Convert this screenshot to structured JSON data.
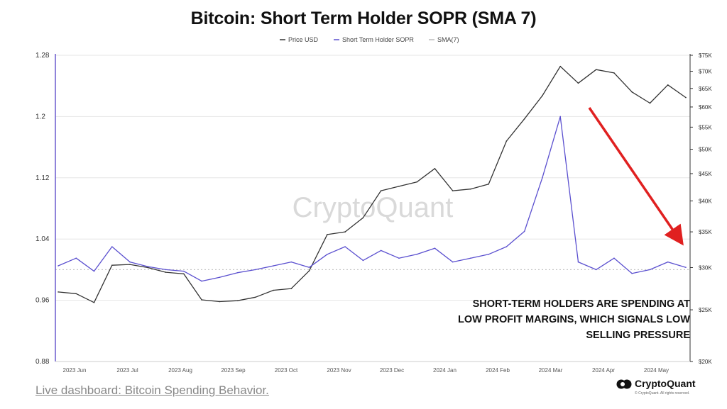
{
  "chart_data": {
    "type": "line",
    "title": "Bitcoin: Short Term Holder SOPR (SMA 7)",
    "legend": [
      "Price USD",
      "Short Term Holder SOPR",
      "SMA(7)"
    ],
    "legend_placement": "top-center",
    "y_left": {
      "ticks": [
        "1.28",
        "1.2",
        "1.12",
        "1.04",
        "0.96",
        "0.88"
      ],
      "range": [
        0.88,
        1.28
      ]
    },
    "y_right": {
      "ticks": [
        "$75K",
        "$70K",
        "$65K",
        "$60K",
        "$55K",
        "$50K",
        "$45K",
        "$40K",
        "$35K",
        "$30K",
        "$25K",
        "$20K"
      ],
      "range": [
        20000,
        75000
      ],
      "scale": "log"
    },
    "x_ticks": [
      "2023 Jun",
      "2023 Jul",
      "2023 Aug",
      "2023 Sep",
      "2023 Oct",
      "2023 Nov",
      "2023 Dec",
      "2024 Jan",
      "2024 Feb",
      "2024 Mar",
      "2024 Apr",
      "2024 May"
    ],
    "grid": true,
    "reference_line": {
      "value": 1.0,
      "style": "dotted"
    },
    "series": [
      {
        "name": "Price USD",
        "color": "#333333",
        "axis": "right",
        "x": [
          "2023 Jun",
          "2023 Jun",
          "2023 Jun",
          "2023 Jul",
          "2023 Jul",
          "2023 Jul",
          "2023 Aug",
          "2023 Aug",
          "2023 Aug",
          "2023 Sep",
          "2023 Sep",
          "2023 Sep",
          "2023 Oct",
          "2023 Oct",
          "2023 Oct",
          "2023 Nov",
          "2023 Nov",
          "2023 Nov",
          "2023 Dec",
          "2023 Dec",
          "2023 Dec",
          "2024 Jan",
          "2024 Jan",
          "2024 Jan",
          "2024 Feb",
          "2024 Feb",
          "2024 Feb",
          "2024 Mar",
          "2024 Mar",
          "2024 Mar",
          "2024 Apr",
          "2024 Apr",
          "2024 Apr",
          "2024 May",
          "2024 May",
          "2024 May"
        ],
        "values": [
          27000,
          26800,
          25800,
          30300,
          30400,
          30000,
          29400,
          29200,
          26100,
          25900,
          26000,
          26400,
          27200,
          27400,
          29600,
          34600,
          35000,
          37200,
          41800,
          42600,
          43400,
          46000,
          41800,
          42100,
          43000,
          51800,
          57000,
          63000,
          71500,
          66500,
          70500,
          69500,
          64000,
          61000,
          66000,
          62500
        ]
      },
      {
        "name": "Short Term Holder SOPR",
        "color": "#5a4fcf",
        "axis": "left",
        "x": [
          "2023 Jun",
          "2023 Jun",
          "2023 Jun",
          "2023 Jul",
          "2023 Jul",
          "2023 Jul",
          "2023 Aug",
          "2023 Aug",
          "2023 Aug",
          "2023 Sep",
          "2023 Sep",
          "2023 Sep",
          "2023 Oct",
          "2023 Oct",
          "2023 Oct",
          "2023 Nov",
          "2023 Nov",
          "2023 Nov",
          "2023 Dec",
          "2023 Dec",
          "2023 Dec",
          "2024 Jan",
          "2024 Jan",
          "2024 Jan",
          "2024 Feb",
          "2024 Feb",
          "2024 Feb",
          "2024 Mar",
          "2024 Mar",
          "2024 Mar",
          "2024 Apr",
          "2024 Apr",
          "2024 Apr",
          "2024 May",
          "2024 May",
          "2024 May"
        ],
        "values": [
          1.005,
          1.015,
          0.998,
          1.03,
          1.01,
          1.004,
          1.0,
          0.998,
          0.985,
          0.99,
          0.996,
          1.0,
          1.005,
          1.01,
          1.003,
          1.02,
          1.03,
          1.012,
          1.025,
          1.015,
          1.02,
          1.028,
          1.01,
          1.015,
          1.02,
          1.03,
          1.05,
          1.12,
          1.2,
          1.01,
          1.0,
          1.015,
          0.995,
          1.0,
          1.01,
          1.003
        ]
      }
    ],
    "annotation": [
      "SHORT-TERM HOLDERS ARE SPENDING AT",
      "LOW PROFIT MARGINS, WHICH SIGNALS LOW",
      "SELLING PRESSURE"
    ],
    "watermark": "CryptoQuant"
  },
  "footer": {
    "link_text": "Live dashboard: Bitcoin Spending Behavior."
  },
  "brand": {
    "name": "CryptoQuant",
    "copyright": "© CryptoQuant. All rights reserved."
  },
  "colors": {
    "price": "#333333",
    "sopr": "#5a4fcf",
    "arrow": "#e02020"
  }
}
